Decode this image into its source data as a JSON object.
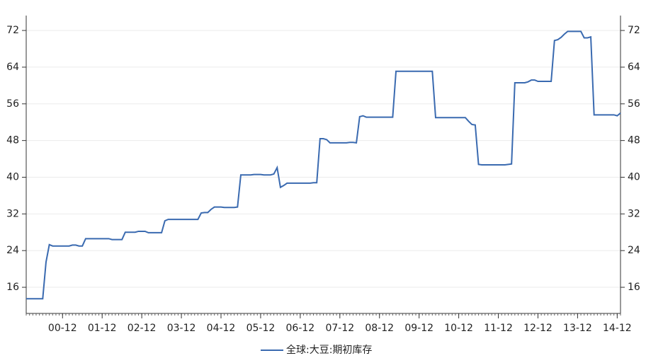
{
  "chart_data": {
    "type": "line",
    "categories": [
      null,
      null,
      null,
      null,
      null,
      null,
      null,
      null,
      null,
      null,
      null,
      "00-12",
      null,
      null,
      null,
      null,
      null,
      null,
      null,
      null,
      null,
      null,
      null,
      "01-12",
      null,
      null,
      null,
      null,
      null,
      null,
      null,
      null,
      null,
      null,
      null,
      "02-12",
      null,
      null,
      null,
      null,
      null,
      null,
      null,
      null,
      null,
      null,
      null,
      "03-12",
      null,
      null,
      null,
      null,
      null,
      null,
      null,
      null,
      null,
      null,
      null,
      "04-12",
      null,
      null,
      null,
      null,
      null,
      null,
      null,
      null,
      null,
      null,
      null,
      "05-12",
      null,
      null,
      null,
      null,
      null,
      null,
      null,
      null,
      null,
      null,
      null,
      "06-12",
      null,
      null,
      null,
      null,
      null,
      null,
      null,
      null,
      null,
      null,
      null,
      "07-12",
      null,
      null,
      null,
      null,
      null,
      null,
      null,
      null,
      null,
      null,
      null,
      "08-12",
      null,
      null,
      null,
      null,
      null,
      null,
      null,
      null,
      null,
      null,
      null,
      "09-12",
      null,
      null,
      null,
      null,
      null,
      null,
      null,
      null,
      null,
      null,
      null,
      "10-12",
      null,
      null,
      null,
      null,
      null,
      null,
      null,
      null,
      null,
      null,
      null,
      "11-12",
      null,
      null,
      null,
      null,
      null,
      null,
      null,
      null,
      null,
      null,
      null,
      "12-12",
      null,
      null,
      null,
      null,
      null,
      null,
      null,
      null,
      null,
      null,
      null,
      "13-12",
      null,
      null,
      null,
      null,
      null,
      null,
      null,
      null,
      null,
      null,
      null,
      "14-12",
      null
    ],
    "series": [
      {
        "name": "全球:大豆:期初库存",
        "color": "#3a6ab0",
        "values": [
          13.5,
          13.5,
          13.5,
          13.5,
          13.5,
          13.5,
          21.5,
          25.3,
          25,
          25,
          25,
          25,
          25,
          25,
          25.2,
          25.2,
          25,
          25,
          26.6,
          26.6,
          26.6,
          26.6,
          26.6,
          26.6,
          26.6,
          26.6,
          26.4,
          26.4,
          26.4,
          26.4,
          28,
          28,
          28,
          28,
          28.2,
          28.2,
          28.2,
          27.9,
          27.9,
          27.9,
          27.9,
          27.9,
          30.5,
          30.8,
          30.8,
          30.8,
          30.8,
          30.8,
          30.8,
          30.8,
          30.8,
          30.8,
          30.8,
          32.2,
          32.3,
          32.3,
          33,
          33.5,
          33.5,
          33.5,
          33.4,
          33.4,
          33.4,
          33.4,
          33.5,
          40.5,
          40.5,
          40.5,
          40.5,
          40.6,
          40.6,
          40.6,
          40.5,
          40.5,
          40.5,
          40.7,
          42.1,
          37.8,
          38.2,
          38.7,
          38.7,
          38.7,
          38.7,
          38.7,
          38.7,
          38.7,
          38.7,
          38.8,
          38.8,
          48.4,
          48.4,
          48.2,
          47.5,
          47.5,
          47.5,
          47.5,
          47.5,
          47.5,
          47.6,
          47.6,
          47.5,
          53.2,
          53.4,
          53.1,
          53.1,
          53.1,
          53.1,
          53.1,
          53.1,
          53.1,
          53.1,
          53.1,
          63.1,
          63.1,
          63.1,
          63.1,
          63.1,
          63.1,
          63.1,
          63.1,
          63.1,
          63.1,
          63.1,
          63.1,
          53,
          53,
          53,
          53,
          53,
          53,
          53,
          53,
          53,
          53,
          52.2,
          51.5,
          51.4,
          42.8,
          42.7,
          42.7,
          42.7,
          42.7,
          42.7,
          42.7,
          42.7,
          42.7,
          42.8,
          42.9,
          60.6,
          60.6,
          60.6,
          60.6,
          60.8,
          61.2,
          61.2,
          60.9,
          60.9,
          60.9,
          60.9,
          60.9,
          69.8,
          70,
          70.5,
          71.2,
          71.8,
          71.8,
          71.8,
          71.8,
          71.8,
          70.4,
          70.4,
          70.6,
          53.6,
          53.6,
          53.6,
          53.6,
          53.6,
          53.6,
          53.6,
          53.4,
          54
        ]
      }
    ],
    "ylim": [
      10.3,
      75.25
    ],
    "yticks": [
      16,
      24,
      32,
      40,
      48,
      56,
      64,
      72
    ],
    "y2lim": [
      10.3,
      75.25
    ],
    "y2ticks": [
      16,
      24,
      32,
      40,
      48,
      56,
      64,
      72
    ],
    "grid": true,
    "legend": "bottom"
  }
}
